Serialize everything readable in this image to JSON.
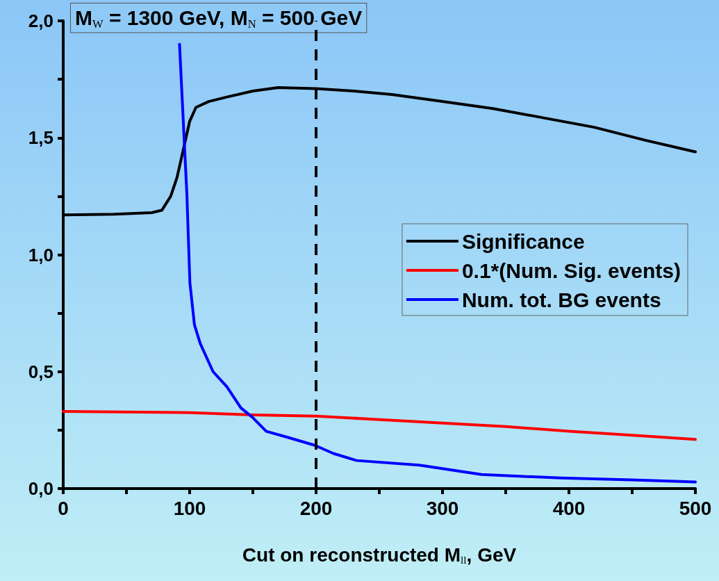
{
  "chart_data": {
    "type": "line",
    "xlabel": "Cut on reconstructed M$_{ll}$, GeV",
    "annotations": [
      "M$_{W}$ = 1300 GeV, M$_{N}$ = 500 GeV"
    ],
    "xlim": [
      0,
      500
    ],
    "xticks": [
      0,
      {
        "value": 50,
        "label": null
      },
      100,
      {
        "value": 150,
        "label": null
      },
      200,
      {
        "value": 250,
        "label": null
      },
      300,
      {
        "value": 350,
        "label": null
      },
      400,
      {
        "value": 450,
        "label": null
      },
      500
    ],
    "ylim": [
      0,
      2
    ],
    "yticks": [
      {
        "value": 0,
        "label": "0,0"
      },
      {
        "value": 0.25,
        "label": null
      },
      {
        "value": 0.5,
        "label": "0,5"
      },
      {
        "value": 0.75,
        "label": null
      },
      {
        "value": 1,
        "label": "1,0"
      },
      {
        "value": 1.25,
        "label": null
      },
      {
        "value": 1.5,
        "label": "1,5"
      },
      {
        "value": 1.75,
        "label": null
      },
      {
        "value": 2,
        "label": "2,0"
      }
    ],
    "grid": false,
    "legend": "right",
    "line_style": "solid",
    "marker": "none",
    "ref_lines": [
      {
        "axis": "x",
        "value": 200,
        "label": null,
        "color": "#000000",
        "line_style": "dashed"
      }
    ],
    "series": [
      {
        "name": "Significance",
        "color": "#000000",
        "x": [
          0,
          40,
          70,
          78,
          85,
          90,
          95,
          100,
          105,
          115,
          130,
          150,
          170,
          200,
          230,
          260,
          300,
          340,
          380,
          420,
          460,
          500
        ],
        "values": [
          1.17,
          1.173,
          1.18,
          1.19,
          1.25,
          1.33,
          1.45,
          1.57,
          1.63,
          1.655,
          1.675,
          1.7,
          1.715,
          1.71,
          1.7,
          1.685,
          1.655,
          1.625,
          1.585,
          1.545,
          1.49,
          1.44
        ]
      },
      {
        "name": "0.1*(Num. Sig. events)",
        "color": "#ff0000",
        "x": [
          0,
          100,
          150,
          200,
          250,
          300,
          350,
          400,
          450,
          500
        ],
        "values": [
          0.33,
          0.325,
          0.315,
          0.31,
          0.295,
          0.28,
          0.265,
          0.245,
          0.228,
          0.21
        ]
      },
      {
        "name": "Num. tot. BG events",
        "color": "#0000ff",
        "x": [
          92,
          95.6,
          97.8,
          100.2,
          103.8,
          108.4,
          118.5,
          129.5,
          140.5,
          149.6,
          160.6,
          177,
          199,
          213.7,
          232,
          281.5,
          330.8,
          393.7,
          449.8,
          500
        ],
        "values": [
          1.9,
          1.5,
          1.26,
          0.88,
          0.7,
          0.62,
          0.5,
          0.435,
          0.345,
          0.305,
          0.245,
          0.22,
          0.185,
          0.15,
          0.12,
          0.1,
          0.06,
          0.045,
          0.037,
          0.028
        ]
      }
    ]
  }
}
